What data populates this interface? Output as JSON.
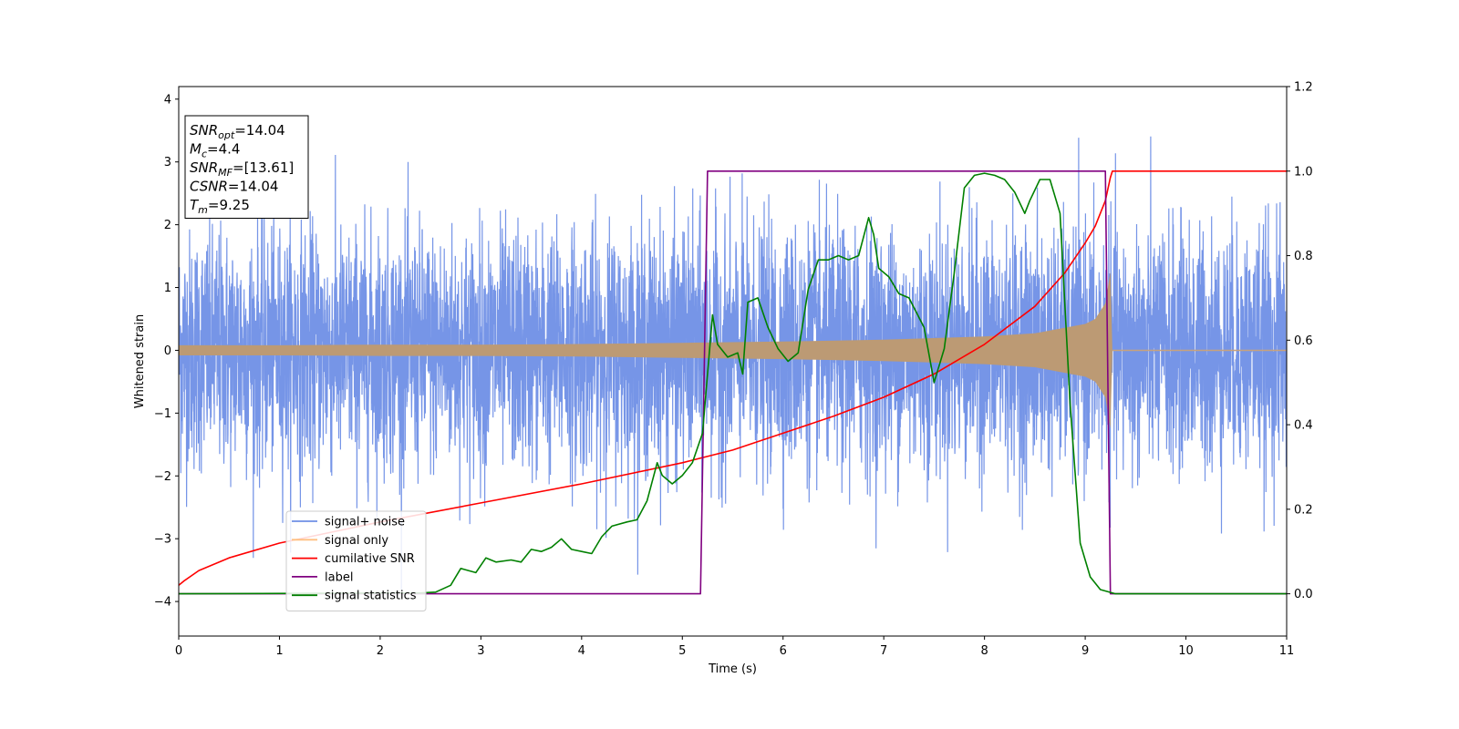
{
  "chart_data": {
    "type": "line",
    "xlabel": "Time (s)",
    "ylabel": "Whitened strain",
    "xlim": [
      0,
      11
    ],
    "ylim": [
      -4.55,
      4.2
    ],
    "y2lim": [
      -0.1,
      1.2
    ],
    "xticks": [
      "0",
      "1",
      "2",
      "3",
      "4",
      "5",
      "6",
      "7",
      "8",
      "9",
      "10",
      "11"
    ],
    "yticks": [
      "−4",
      "−3",
      "−2",
      "−1",
      "0",
      "1",
      "2",
      "3",
      "4"
    ],
    "y2ticks": [
      "0.0",
      "0.2",
      "0.4",
      "0.6",
      "0.8",
      "1.0",
      "1.2"
    ],
    "grid": false,
    "legend_position": "lower-left",
    "annotations": [
      {
        "sym": "SNR",
        "sub": "opt",
        "value": "=14.04"
      },
      {
        "sym": "M",
        "sub": "c",
        "value": "=4.4"
      },
      {
        "sym": "SNR",
        "sub": "MF",
        "value": "=[13.61]"
      },
      {
        "sym": "CSNR",
        "sub": "",
        "value": "=14.04"
      },
      {
        "sym": "T",
        "sub": "m",
        "value": "=9.25"
      }
    ],
    "series": [
      {
        "name": "signal+ noise",
        "axis": "left",
        "color": "#6f8fe6",
        "kind": "noise",
        "noise_std": 0.95,
        "x_range": [
          0,
          11
        ],
        "min": -4.15,
        "max": 3.8
      },
      {
        "name": "signal only",
        "axis": "left",
        "color": "#ffbf80",
        "kind": "chirp_envelope",
        "x": [
          0,
          1,
          2,
          3,
          4,
          5,
          6,
          7,
          8,
          8.5,
          9,
          9.1,
          9.2,
          9.25,
          9.27,
          11
        ],
        "upper": [
          0.08,
          0.08,
          0.09,
          0.09,
          0.1,
          0.12,
          0.14,
          0.17,
          0.22,
          0.27,
          0.42,
          0.5,
          0.75,
          1.25,
          0.0,
          0.0
        ],
        "lower": [
          -0.08,
          -0.08,
          -0.09,
          -0.09,
          -0.1,
          -0.12,
          -0.14,
          -0.17,
          -0.22,
          -0.27,
          -0.42,
          -0.5,
          -0.75,
          -1.25,
          0.0,
          0.0
        ]
      },
      {
        "name": "cumilative SNR",
        "axis": "right",
        "color": "#ff0000",
        "x": [
          0,
          0.05,
          0.2,
          0.5,
          1,
          1.5,
          2,
          3,
          4,
          5,
          5.5,
          6,
          6.5,
          7,
          7.5,
          8,
          8.5,
          8.8,
          9.0,
          9.1,
          9.2,
          9.25,
          9.27,
          11
        ],
        "y": [
          0.02,
          0.03,
          0.055,
          0.085,
          0.12,
          0.145,
          0.17,
          0.215,
          0.26,
          0.31,
          0.34,
          0.38,
          0.42,
          0.465,
          0.52,
          0.59,
          0.68,
          0.76,
          0.83,
          0.87,
          0.93,
          0.985,
          1.0,
          1.0
        ]
      },
      {
        "name": "label",
        "axis": "right",
        "color": "#800080",
        "x": [
          0,
          5.18,
          5.25,
          9.2,
          9.25,
          11
        ],
        "y": [
          0.0,
          0.0,
          1.0,
          1.0,
          0.0,
          0.0
        ]
      },
      {
        "name": "signal statistics",
        "axis": "right",
        "color": "#008000",
        "x": [
          0,
          2.4,
          2.55,
          2.7,
          2.8,
          2.95,
          3.05,
          3.15,
          3.3,
          3.4,
          3.5,
          3.6,
          3.7,
          3.8,
          3.9,
          4.0,
          4.1,
          4.2,
          4.3,
          4.45,
          4.55,
          4.65,
          4.75,
          4.8,
          4.9,
          5.0,
          5.1,
          5.2,
          5.25,
          5.3,
          5.35,
          5.45,
          5.55,
          5.6,
          5.65,
          5.75,
          5.85,
          5.95,
          6.05,
          6.15,
          6.25,
          6.35,
          6.45,
          6.55,
          6.65,
          6.75,
          6.85,
          6.9,
          6.95,
          7.05,
          7.15,
          7.25,
          7.4,
          7.5,
          7.6,
          7.7,
          7.8,
          7.9,
          8.0,
          8.1,
          8.2,
          8.3,
          8.4,
          8.45,
          8.55,
          8.65,
          8.75,
          8.85,
          8.95,
          9.05,
          9.15,
          9.3,
          11
        ],
        "y": [
          0.0,
          0.002,
          0.004,
          0.02,
          0.06,
          0.05,
          0.085,
          0.075,
          0.08,
          0.075,
          0.105,
          0.1,
          0.11,
          0.13,
          0.105,
          0.1,
          0.095,
          0.135,
          0.16,
          0.17,
          0.175,
          0.22,
          0.31,
          0.28,
          0.26,
          0.28,
          0.31,
          0.38,
          0.52,
          0.66,
          0.59,
          0.56,
          0.57,
          0.52,
          0.69,
          0.7,
          0.63,
          0.58,
          0.55,
          0.57,
          0.72,
          0.79,
          0.79,
          0.8,
          0.79,
          0.8,
          0.89,
          0.85,
          0.77,
          0.75,
          0.71,
          0.7,
          0.63,
          0.5,
          0.58,
          0.76,
          0.96,
          0.99,
          0.995,
          0.99,
          0.98,
          0.95,
          0.9,
          0.93,
          0.98,
          0.98,
          0.9,
          0.45,
          0.12,
          0.04,
          0.01,
          0.0,
          0.0
        ]
      }
    ]
  }
}
